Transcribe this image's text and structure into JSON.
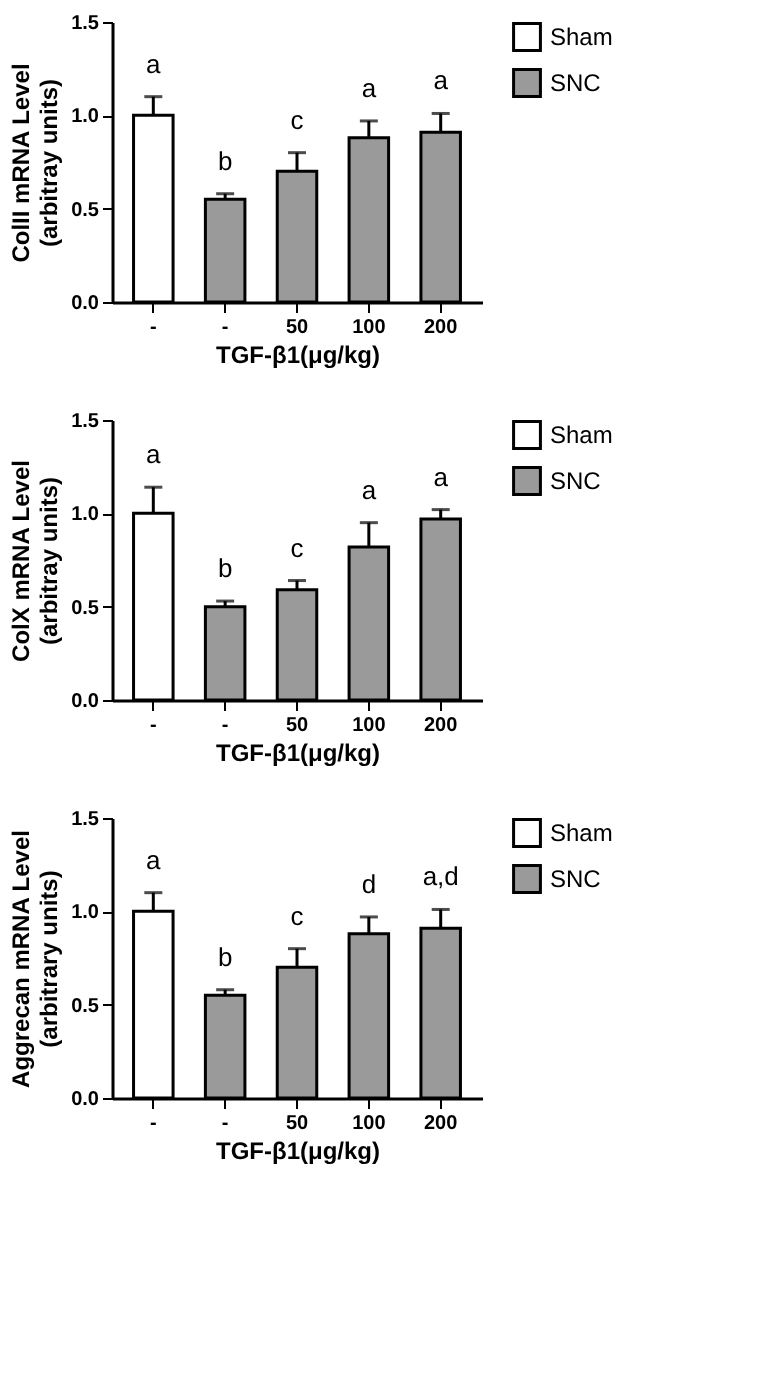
{
  "chart_data": [
    {
      "type": "bar",
      "ylabel": "ColII mRNA Level\n(arbitray units)",
      "xlabel": "TGF-β1(μg/kg)",
      "categories": [
        "-",
        "-",
        "50",
        "100",
        "200"
      ],
      "ylim": [
        0,
        1.5
      ],
      "yticks": [
        {
          "value": 0,
          "label": "0.0"
        },
        {
          "value": 0.5,
          "label": "0.5"
        },
        {
          "value": 1,
          "label": "1.0"
        },
        {
          "value": 1.5,
          "label": "1.5"
        }
      ],
      "grid": false,
      "legend": "top right",
      "series": [
        {
          "name": "Sham",
          "color": "#ffffff",
          "values": [
            1.0,
            null,
            null,
            null,
            null
          ],
          "errors": [
            0.1,
            null,
            null,
            null,
            null
          ],
          "value_labels": [
            "a",
            null,
            null,
            null,
            null
          ]
        },
        {
          "name": "SNC",
          "color": "#9a9a9a",
          "values": [
            null,
            0.55,
            0.7,
            0.88,
            0.91
          ],
          "errors": [
            null,
            0.03,
            0.1,
            0.09,
            0.1
          ],
          "value_labels": [
            null,
            "b",
            "c",
            "a",
            "a"
          ]
        }
      ]
    },
    {
      "type": "bar",
      "ylabel": "ColX mRNA Level\n(arbitray units)",
      "xlabel": "TGF-β1(μg/kg)",
      "categories": [
        "-",
        "-",
        "50",
        "100",
        "200"
      ],
      "ylim": [
        0,
        1.5
      ],
      "yticks": [
        {
          "value": 0,
          "label": "0.0"
        },
        {
          "value": 0.5,
          "label": "0.5"
        },
        {
          "value": 1,
          "label": "1.0"
        },
        {
          "value": 1.5,
          "label": "1.5"
        }
      ],
      "grid": false,
      "legend": "top right",
      "series": [
        {
          "name": "Sham",
          "color": "#ffffff",
          "values": [
            1.0,
            null,
            null,
            null,
            null
          ],
          "errors": [
            0.14,
            null,
            null,
            null,
            null
          ],
          "value_labels": [
            "a",
            null,
            null,
            null,
            null
          ]
        },
        {
          "name": "SNC",
          "color": "#9a9a9a",
          "values": [
            null,
            0.5,
            0.59,
            0.82,
            0.97
          ],
          "errors": [
            null,
            0.03,
            0.05,
            0.13,
            0.05
          ],
          "value_labels": [
            null,
            "b",
            "c",
            "a",
            "a"
          ]
        }
      ]
    },
    {
      "type": "bar",
      "ylabel": "Aggrecan mRNA Level\n(arbitrary units)",
      "xlabel": "TGF-β1(μg/kg)",
      "categories": [
        "-",
        "-",
        "50",
        "100",
        "200"
      ],
      "ylim": [
        0,
        1.5
      ],
      "yticks": [
        {
          "value": 0,
          "label": "0.0"
        },
        {
          "value": 0.5,
          "label": "0.5"
        },
        {
          "value": 1,
          "label": "1.0"
        },
        {
          "value": 1.5,
          "label": "1.5"
        }
      ],
      "grid": false,
      "legend": "top right",
      "series": [
        {
          "name": "Sham",
          "color": "#ffffff",
          "values": [
            1.0,
            null,
            null,
            null,
            null
          ],
          "errors": [
            0.1,
            null,
            null,
            null,
            null
          ],
          "value_labels": [
            "a",
            null,
            null,
            null,
            null
          ]
        },
        {
          "name": "SNC",
          "color": "#9a9a9a",
          "values": [
            null,
            0.55,
            0.7,
            0.88,
            0.91
          ],
          "errors": [
            null,
            0.03,
            0.1,
            0.09,
            0.1
          ],
          "value_labels": [
            null,
            "b",
            "c",
            "d",
            "a,d"
          ]
        }
      ]
    }
  ]
}
